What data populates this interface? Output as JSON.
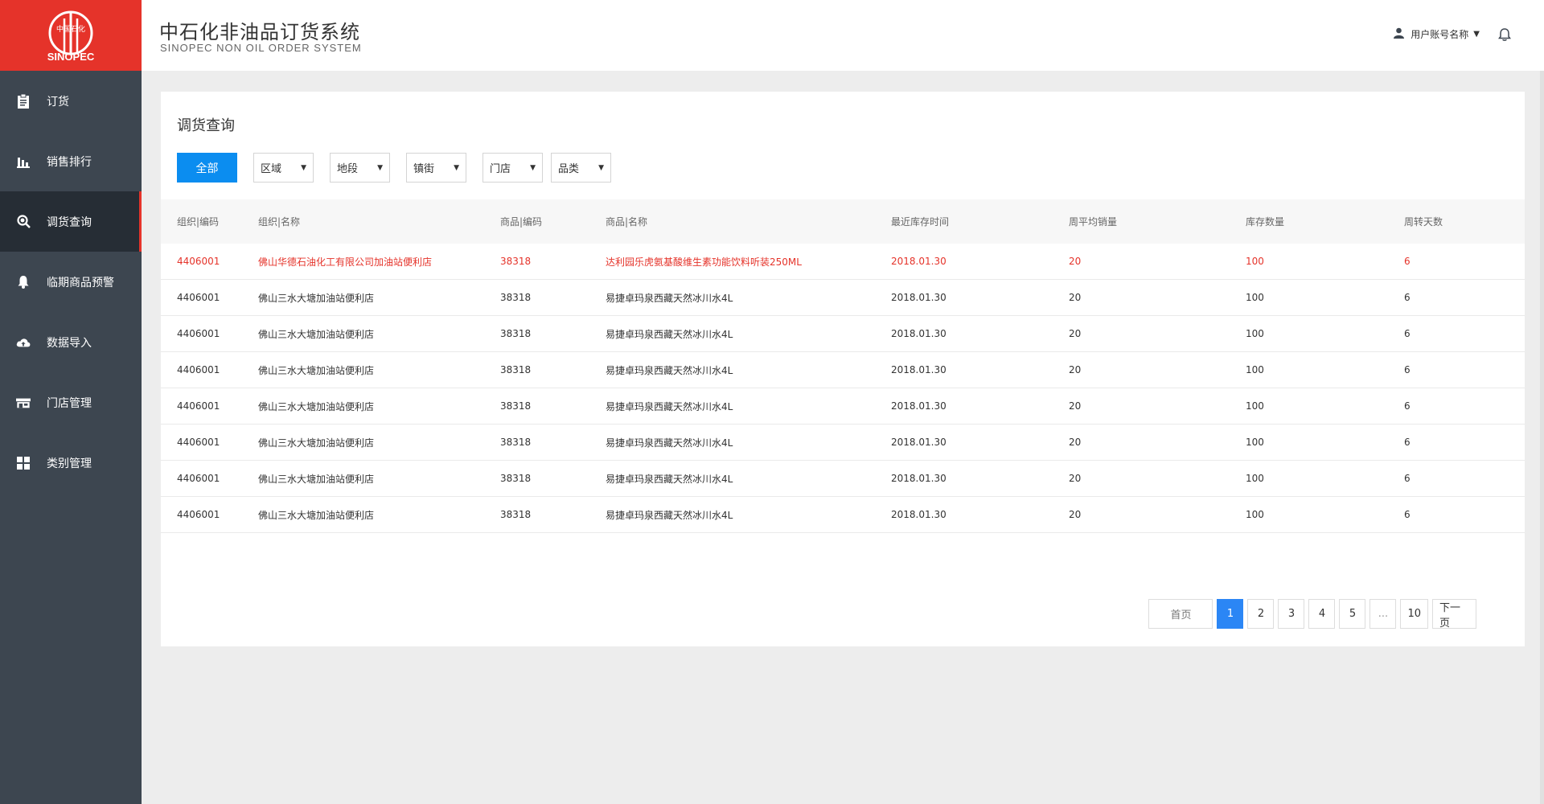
{
  "header": {
    "title": "中石化非油品订货系统",
    "subtitle": "SINOPEC NON OIL ORDER SYSTEM",
    "user_label": "用户账号名称",
    "user_caret": "▼"
  },
  "brand": {
    "logo_text": "SINOPEC",
    "logo_script": "中国石化",
    "red": "#e5332a",
    "primary_blue": "#0b8df0",
    "sidebar_bg": "#3d4650"
  },
  "sidebar": {
    "items": [
      {
        "label": "订货",
        "icon": "clipboard-icon"
      },
      {
        "label": "销售排行",
        "icon": "bar-chart-icon"
      },
      {
        "label": "调货查询",
        "icon": "search-icon"
      },
      {
        "label": "临期商品预警",
        "icon": "bell-icon"
      },
      {
        "label": "数据导入",
        "icon": "cloud-upload-icon"
      },
      {
        "label": "门店管理",
        "icon": "store-icon"
      },
      {
        "label": "类别管理",
        "icon": "grid-icon"
      }
    ],
    "active_index": 2
  },
  "main": {
    "title": "调货查询",
    "filters": {
      "all_button": "全部",
      "selects": [
        "区域",
        "地段",
        "镇街",
        "门店",
        "品类"
      ]
    },
    "table": {
      "headers": [
        "组织|编码",
        "组织|名称",
        "商品|编码",
        "商品|名称",
        "最近库存时间",
        "周平均销量",
        "库存数量",
        "周转天数"
      ],
      "rows": [
        [
          "4406001",
          "佛山华德石油化工有限公司加油站便利店",
          "38318",
          "达利园乐虎氨基酸维生素功能饮料听装250ML",
          "2018.01.30",
          "20",
          "100",
          "6"
        ],
        [
          "4406001",
          "佛山三水大塘加油站便利店",
          "38318",
          "易捷卓玛泉西藏天然冰川水4L",
          "2018.01.30",
          "20",
          "100",
          "6"
        ],
        [
          "4406001",
          "佛山三水大塘加油站便利店",
          "38318",
          "易捷卓玛泉西藏天然冰川水4L",
          "2018.01.30",
          "20",
          "100",
          "6"
        ],
        [
          "4406001",
          "佛山三水大塘加油站便利店",
          "38318",
          "易捷卓玛泉西藏天然冰川水4L",
          "2018.01.30",
          "20",
          "100",
          "6"
        ],
        [
          "4406001",
          "佛山三水大塘加油站便利店",
          "38318",
          "易捷卓玛泉西藏天然冰川水4L",
          "2018.01.30",
          "20",
          "100",
          "6"
        ],
        [
          "4406001",
          "佛山三水大塘加油站便利店",
          "38318",
          "易捷卓玛泉西藏天然冰川水4L",
          "2018.01.30",
          "20",
          "100",
          "6"
        ],
        [
          "4406001",
          "佛山三水大塘加油站便利店",
          "38318",
          "易捷卓玛泉西藏天然冰川水4L",
          "2018.01.30",
          "20",
          "100",
          "6"
        ],
        [
          "4406001",
          "佛山三水大塘加油站便利店",
          "38318",
          "易捷卓玛泉西藏天然冰川水4L",
          "2018.01.30",
          "20",
          "100",
          "6"
        ]
      ],
      "highlight_row": 0
    },
    "pagination": {
      "first": "首页",
      "pages": [
        "1",
        "2",
        "3",
        "4",
        "5",
        "...",
        "10"
      ],
      "current": "1",
      "next": "下一页"
    }
  }
}
